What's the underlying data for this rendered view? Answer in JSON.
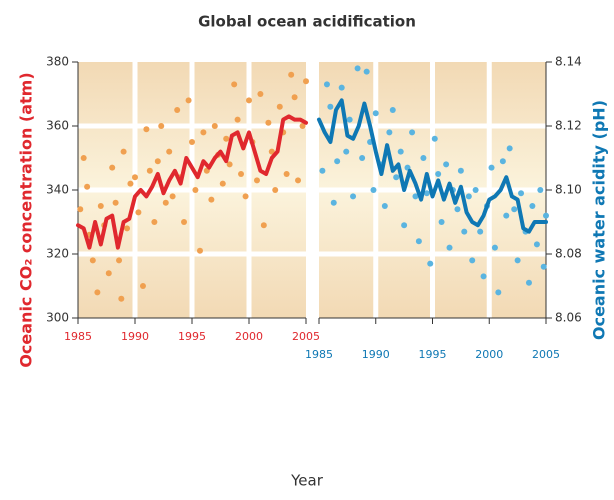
{
  "title": "Global ocean acidification",
  "x_label": "Year",
  "chart_data": [
    {
      "type": "scatter",
      "y_label": "Oceanic CO₂ concentration (atm)",
      "label_color": "#e0282e",
      "xlim": [
        1985,
        2005
      ],
      "xticks": [
        1985,
        1990,
        1995,
        2000,
        2005
      ],
      "ylim": [
        300,
        380
      ],
      "yticks": [
        300,
        320,
        340,
        360,
        380
      ],
      "grid": true,
      "points": {
        "color": "#f0a050",
        "x": [
          1985.2,
          1985.5,
          1985.8,
          1986.0,
          1986.3,
          1986.7,
          1987.0,
          1987.3,
          1987.7,
          1988.0,
          1988.3,
          1988.6,
          1988.8,
          1989.0,
          1989.3,
          1989.6,
          1990.0,
          1990.3,
          1990.7,
          1991.0,
          1991.3,
          1991.7,
          1992.0,
          1992.3,
          1992.7,
          1993.0,
          1993.3,
          1993.7,
          1994.0,
          1994.3,
          1994.7,
          1995.0,
          1995.3,
          1995.7,
          1996.0,
          1996.3,
          1996.7,
          1997.0,
          1997.3,
          1997.7,
          1998.0,
          1998.3,
          1998.7,
          1999.0,
          1999.3,
          1999.7,
          2000.0,
          2000.3,
          2000.7,
          2001.0,
          2001.3,
          2001.7,
          2002.0,
          2002.3,
          2002.7,
          2003.0,
          2003.3,
          2003.7,
          2004.0,
          2004.3,
          2004.7,
          2005.0
        ],
        "y": [
          334,
          350,
          341,
          326,
          318,
          308,
          335,
          329,
          314,
          347,
          336,
          318,
          306,
          352,
          328,
          342,
          344,
          333,
          310,
          359,
          346,
          330,
          349,
          360,
          336,
          352,
          338,
          365,
          344,
          330,
          368,
          355,
          340,
          321,
          358,
          346,
          337,
          360,
          351,
          342,
          356,
          348,
          373,
          362,
          345,
          338,
          368,
          355,
          343,
          370,
          329,
          361,
          352,
          340,
          366,
          358,
          345,
          376,
          369,
          343,
          360,
          374
        ]
      },
      "trend": {
        "color": "#e0282e",
        "x": [
          1985,
          1985.5,
          1986,
          1986.5,
          1987,
          1987.5,
          1988,
          1988.5,
          1989,
          1989.5,
          1990,
          1990.5,
          1991,
          1991.5,
          1992,
          1992.5,
          1993,
          1993.5,
          1994,
          1994.5,
          1995,
          1995.5,
          1996,
          1996.5,
          1997,
          1997.5,
          1998,
          1998.5,
          1999,
          1999.5,
          2000,
          2000.5,
          2001,
          2001.5,
          2002,
          2002.5,
          2003,
          2003.5,
          2004,
          2004.5,
          2005
        ],
        "y": [
          329,
          328,
          322,
          330,
          323,
          331,
          332,
          322,
          330,
          331,
          338,
          340,
          338,
          341,
          345,
          339,
          343,
          346,
          342,
          350,
          347,
          344,
          349,
          347,
          350,
          352,
          349,
          357,
          358,
          353,
          358,
          352,
          346,
          345,
          350,
          352,
          362,
          363,
          362,
          362,
          361
        ]
      }
    },
    {
      "type": "scatter",
      "y_label": "Oceanic water acidity (pH)",
      "label_color": "#0f78b4",
      "xlim": [
        1985,
        2005
      ],
      "xticks": [
        1985,
        1990,
        1995,
        2000,
        2005
      ],
      "ylim": [
        8.06,
        8.14
      ],
      "yticks": [
        8.06,
        8.08,
        {
          "value": 8.1,
          "label": "8.10"
        },
        8.12,
        8.14
      ],
      "grid": true,
      "points": {
        "color": "#5ab4e0",
        "x": [
          1985.3,
          1985.7,
          1986.0,
          1986.3,
          1986.6,
          1987.0,
          1987.4,
          1987.7,
          1988.0,
          1988.4,
          1988.8,
          1989.2,
          1989.5,
          1989.8,
          1990.0,
          1990.4,
          1990.8,
          1991.2,
          1991.5,
          1991.8,
          1992.2,
          1992.5,
          1992.8,
          1993.2,
          1993.5,
          1993.8,
          1994.2,
          1994.5,
          1994.8,
          1995.2,
          1995.5,
          1995.8,
          1996.2,
          1996.5,
          1996.8,
          1997.2,
          1997.5,
          1997.8,
          1998.2,
          1998.5,
          1998.8,
          1999.2,
          1999.5,
          1999.8,
          2000.2,
          2000.5,
          2000.8,
          2001.2,
          2001.5,
          2001.8,
          2002.2,
          2002.5,
          2002.8,
          2003.2,
          2003.5,
          2003.8,
          2004.2,
          2004.5,
          2004.8,
          2005.0
        ],
        "y": [
          8.106,
          8.133,
          8.126,
          8.096,
          8.109,
          8.132,
          8.112,
          8.122,
          8.098,
          8.138,
          8.11,
          8.137,
          8.115,
          8.1,
          8.124,
          8.108,
          8.095,
          8.118,
          8.125,
          8.104,
          8.112,
          8.089,
          8.107,
          8.118,
          8.098,
          8.084,
          8.11,
          8.099,
          8.077,
          8.116,
          8.105,
          8.09,
          8.108,
          8.082,
          8.1,
          8.094,
          8.106,
          8.087,
          8.098,
          8.078,
          8.1,
          8.087,
          8.073,
          8.095,
          8.107,
          8.082,
          8.068,
          8.109,
          8.092,
          8.113,
          8.094,
          8.078,
          8.099,
          8.087,
          8.071,
          8.095,
          8.083,
          8.1,
          8.076,
          8.092
        ]
      },
      "trend": {
        "color": "#0f78b4",
        "x": [
          1985,
          1985.5,
          1986,
          1986.5,
          1987,
          1987.5,
          1988,
          1988.5,
          1989,
          1989.5,
          1990,
          1990.5,
          1991,
          1991.5,
          1992,
          1992.5,
          1993,
          1993.5,
          1994,
          1994.5,
          1995,
          1995.5,
          1996,
          1996.5,
          1997,
          1997.5,
          1998,
          1998.5,
          1999,
          1999.5,
          2000,
          2000.5,
          2001,
          2001.5,
          2002,
          2002.5,
          2003,
          2003.5,
          2004,
          2004.5,
          2005
        ],
        "y": [
          8.122,
          8.118,
          8.115,
          8.125,
          8.128,
          8.117,
          8.116,
          8.12,
          8.127,
          8.12,
          8.112,
          8.105,
          8.114,
          8.106,
          8.108,
          8.1,
          8.106,
          8.102,
          8.097,
          8.105,
          8.098,
          8.103,
          8.097,
          8.102,
          8.096,
          8.101,
          8.093,
          8.09,
          8.089,
          8.092,
          8.097,
          8.098,
          8.1,
          8.104,
          8.098,
          8.097,
          8.088,
          8.087,
          8.09,
          8.09,
          8.09
        ]
      }
    }
  ]
}
